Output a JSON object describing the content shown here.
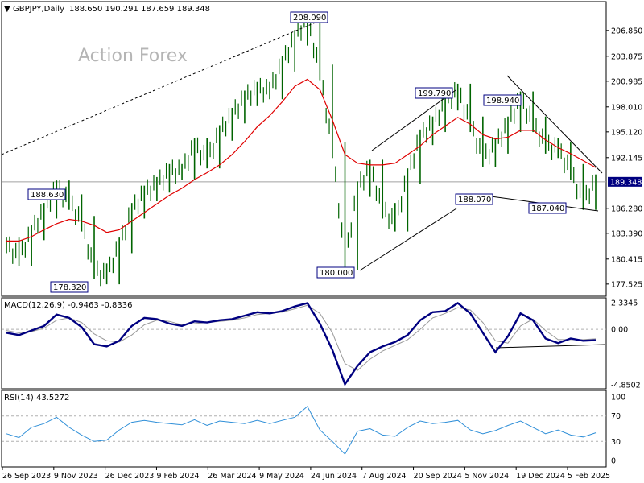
{
  "header": {
    "symbol": "GBPJPY,Daily",
    "ohlc": "188.650 190.291 187.659 189.348"
  },
  "watermark": "Action Forex",
  "colors": {
    "candle": "#006400",
    "ma": "#e00000",
    "macd_main": "#000080",
    "macd_signal": "#9a9a9a",
    "rsi": "#2f8fd8",
    "trend": "#000000",
    "annotation_border": "#000080",
    "price_tag_bg": "#000080"
  },
  "chart_data": [
    {
      "type": "line",
      "name": "price",
      "style": "candlestick-like daily price",
      "ylim": [
        176.3,
        210.0
      ],
      "y_ticks": [
        "206.850",
        "203.875",
        "200.985",
        "198.010",
        "195.120",
        "192.145",
        "189.348",
        "186.280",
        "183.390",
        "180.415",
        "177.525"
      ],
      "x_ticks": [
        "26 Sep 2023",
        "9 Nov 2023",
        "26 Dec 2023",
        "9 Feb 2024",
        "26 Mar 2024",
        "9 May 2024",
        "24 Jun 2024",
        "7 Aug 2024",
        "20 Sep 2024",
        "5 Nov 2024",
        "19 Dec 2024",
        "5 Feb 2025"
      ],
      "current_price": "189.348",
      "series": [
        {
          "x": [
            "26 Sep 2023",
            "9 Oct 2023",
            "26 Oct 2023",
            "2 Nov 2023",
            "9 Nov 2023",
            "20 Nov 2023",
            "28 Nov 2023",
            "7 Dec 2023",
            "12 Dec 2023",
            "26 Dec 2023",
            "9 Jan 2024",
            "23 Jan 2024",
            "9 Feb 2024",
            "22 Feb 2024",
            "8 Mar 2024",
            "26 Mar 2024",
            "5 Apr 2024",
            "19 Apr 2024",
            "29 Apr 2024",
            "9 May 2024",
            "23 May 2024",
            "10 Jun 2024",
            "24 Jun 2024",
            "3 Jul 2024",
            "11 Jul 2024",
            "24 Jul 2024",
            "2 Aug 2024",
            "5 Aug 2024",
            "15 Aug 2024",
            "28 Aug 2024",
            "6 Sep 2024",
            "11 Sep 2024",
            "20 Sep 2024",
            "1 Oct 2024",
            "16 Oct 2024",
            "30 Oct 2024",
            "5 Nov 2024",
            "15 Nov 2024",
            "22 Nov 2024",
            "3 Dec 2024",
            "12 Dec 2024",
            "19 Dec 2024",
            "31 Dec 2024",
            "13 Jan 2025",
            "23 Jan 2025",
            "5 Feb 2025",
            "11 Feb 2025",
            "19 Feb 2025"
          ],
          "values": [
            182.0,
            180.5,
            183.5,
            186.0,
            188.6,
            187.0,
            184.5,
            179.0,
            178.4,
            182.0,
            186.0,
            188.0,
            189.0,
            190.5,
            190.5,
            193.5,
            191.8,
            195.0,
            197.0,
            199.0,
            200.0,
            199.8,
            203.0,
            206.0,
            208.1,
            202.0,
            193.0,
            180.0,
            188.5,
            191.0,
            186.0,
            184.5,
            190.0,
            194.5,
            196.0,
            198.5,
            199.8,
            196.0,
            192.0,
            193.5,
            196.0,
            198.9,
            196.0,
            193.5,
            193.0,
            190.5,
            187.0,
            189.3
          ]
        },
        {
          "name": "moving average",
          "values": [
            182.5,
            182.5,
            183.0,
            183.8,
            184.5,
            185.0,
            184.8,
            184.3,
            183.5,
            183.8,
            184.8,
            185.8,
            186.8,
            187.8,
            188.6,
            189.6,
            190.4,
            191.3,
            192.5,
            194.0,
            195.7,
            197.0,
            198.6,
            200.4,
            201.2,
            200.0,
            196.5,
            192.5,
            191.5,
            191.3,
            191.3,
            191.5,
            192.5,
            193.5,
            194.8,
            195.8,
            196.8,
            196.0,
            194.8,
            194.3,
            194.5,
            195.3,
            195.3,
            194.2,
            193.3,
            192.6,
            191.8,
            191.0
          ]
        }
      ],
      "annotations": [
        "208.090",
        "188.630",
        "178.320",
        "180.000",
        "199.790",
        "198.940",
        "188.070",
        "187.040"
      ]
    },
    {
      "type": "line",
      "title": "MACD(12,26,9) -0.9463 -0.8336",
      "ylim": [
        -4.8502,
        2.3345
      ],
      "y_ticks": [
        "2.3345",
        "0.00",
        "-4.8502"
      ],
      "series": [
        {
          "name": "main",
          "values": [
            -0.3,
            -0.5,
            -0.1,
            0.3,
            1.3,
            1.0,
            0.2,
            -1.3,
            -1.5,
            -1.0,
            0.3,
            1.0,
            0.9,
            0.5,
            0.3,
            0.7,
            0.6,
            0.8,
            0.9,
            1.2,
            1.5,
            1.4,
            1.6,
            2.0,
            2.3,
            0.5,
            -1.8,
            -4.8,
            -3.2,
            -2.0,
            -1.5,
            -1.1,
            -0.5,
            0.8,
            1.5,
            1.6,
            2.3,
            1.4,
            -0.3,
            -2.0,
            -0.6,
            1.4,
            0.8,
            -0.8,
            -1.2,
            -0.8,
            -1.0,
            -0.95
          ]
        },
        {
          "name": "signal",
          "values": [
            -0.1,
            -0.3,
            -0.2,
            0.1,
            0.8,
            1.0,
            0.6,
            -0.4,
            -1.0,
            -1.1,
            -0.5,
            0.4,
            0.8,
            0.7,
            0.4,
            0.5,
            0.6,
            0.7,
            0.8,
            1.0,
            1.3,
            1.4,
            1.5,
            1.8,
            2.1,
            1.4,
            -0.3,
            -3.0,
            -3.6,
            -2.6,
            -1.9,
            -1.4,
            -0.9,
            0.0,
            1.0,
            1.4,
            1.9,
            1.7,
            0.6,
            -1.0,
            -1.2,
            0.3,
            0.9,
            -0.1,
            -0.9,
            -0.9,
            -0.9,
            -0.83
          ]
        }
      ]
    },
    {
      "type": "line",
      "title": "RSI(14) 43.5272",
      "ylim": [
        0,
        100
      ],
      "y_ticks": [
        "100",
        "70",
        "30",
        "0"
      ],
      "series": [
        {
          "name": "RSI",
          "values": [
            42,
            36,
            52,
            58,
            68,
            52,
            40,
            30,
            32,
            48,
            60,
            63,
            60,
            58,
            56,
            64,
            55,
            62,
            60,
            58,
            63,
            58,
            63,
            68,
            85,
            48,
            30,
            10,
            46,
            50,
            40,
            38,
            52,
            62,
            58,
            60,
            63,
            48,
            42,
            47,
            55,
            62,
            52,
            42,
            48,
            40,
            37,
            43.5
          ]
        }
      ]
    }
  ]
}
